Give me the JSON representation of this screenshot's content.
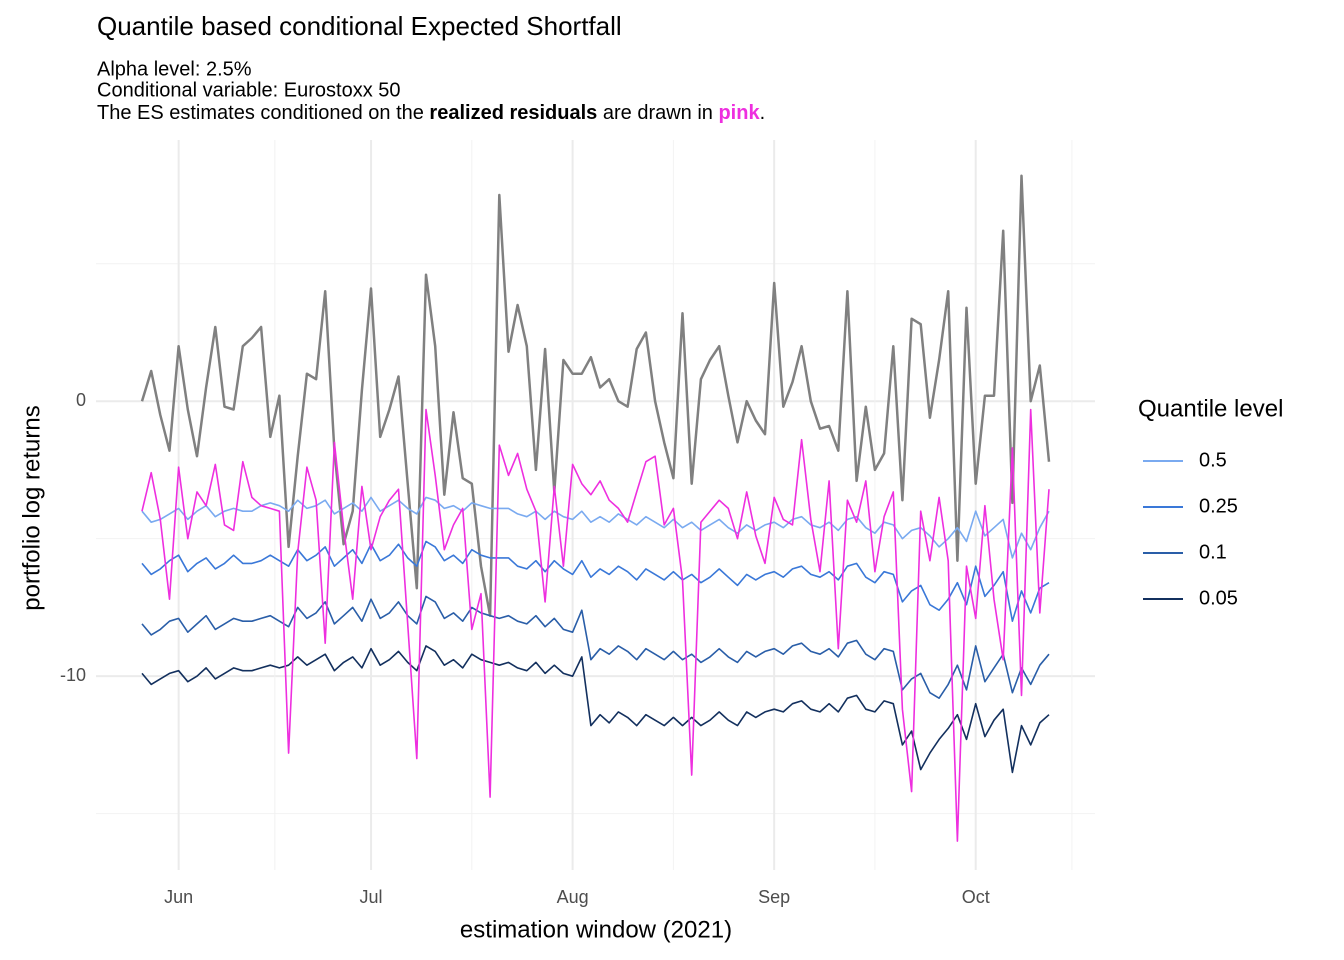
{
  "chart_data": {
    "type": "line",
    "title": "Quantile based conditional Expected Shortfall",
    "subtitle": [
      "Alpha level: 2.5%",
      "Conditional variable: Eurostoxx 50"
    ],
    "note": [
      {
        "text": "The ES estimates conditioned on the "
      },
      {
        "text": "realized residuals",
        "bold": true
      },
      {
        "text": " are drawn in "
      },
      {
        "text": "pink",
        "bold": true,
        "color": "#ee2fdf"
      },
      {
        "text": "."
      }
    ],
    "x_label": "estimation window (2021)",
    "y_label": "portfolio log returns",
    "legend_title": "Quantile level",
    "legend_position": "right",
    "grid": true,
    "ylim": [
      -17.05,
      9.5
    ],
    "yticks": [
      -10,
      0
    ],
    "minor_yticks": [
      -15,
      -5,
      5
    ],
    "categories": [
      null,
      null,
      null,
      null,
      "Jun",
      null,
      null,
      null,
      null,
      null,
      null,
      null,
      null,
      null,
      null,
      null,
      null,
      null,
      null,
      null,
      null,
      null,
      null,
      null,
      null,
      "Jul",
      null,
      null,
      null,
      null,
      null,
      null,
      null,
      null,
      null,
      null,
      null,
      null,
      null,
      null,
      null,
      null,
      null,
      null,
      null,
      null,
      null,
      "Aug",
      null,
      null,
      null,
      null,
      null,
      null,
      null,
      null,
      null,
      null,
      null,
      null,
      null,
      null,
      null,
      null,
      null,
      null,
      null,
      null,
      null,
      "Sep",
      null,
      null,
      null,
      null,
      null,
      null,
      null,
      null,
      null,
      null,
      null,
      null,
      null,
      null,
      null,
      null,
      null,
      null,
      null,
      null,
      null,
      "Oct",
      null,
      null,
      null,
      null,
      null,
      null,
      null,
      null
    ],
    "returns": {
      "color": "#808080",
      "values": [
        0,
        1.1,
        -0.5,
        -1.8,
        2.0,
        -0.3,
        -2.0,
        0.5,
        2.7,
        -0.2,
        -0.3,
        2.0,
        2.3,
        2.7,
        -1.3,
        0.2,
        -5.3,
        -2.0,
        1.0,
        0.8,
        4.0,
        -1.8,
        -5.2,
        -4.0,
        0.4,
        4.1,
        -1.3,
        -0.3,
        0.9,
        -3.0,
        -6.8,
        4.6,
        2.0,
        -3.4,
        -0.4,
        -2.8,
        -3.0,
        -6.0,
        -7.8,
        7.5,
        1.8,
        3.5,
        2.0,
        -2.5,
        1.9,
        -3.3,
        1.5,
        1.0,
        1.0,
        1.6,
        0.5,
        0.8,
        0.0,
        -0.2,
        1.9,
        2.5,
        0.0,
        -1.5,
        -2.8,
        3.2,
        -3.0,
        0.8,
        1.5,
        2.0,
        0.2,
        -1.5,
        0.0,
        -0.7,
        -1.2,
        4.3,
        -0.2,
        0.7,
        2.0,
        0.0,
        -1.0,
        -0.9,
        -1.8,
        4.0,
        -2.9,
        -0.2,
        -2.5,
        -1.9,
        2.0,
        -3.6,
        3.0,
        2.8,
        -0.6,
        1.5,
        4.0,
        -5.8,
        3.4,
        -3.0,
        0.2,
        0.2,
        6.2,
        -3.7,
        8.2,
        0.0,
        1.3,
        -2.2
      ]
    },
    "series": [
      {
        "name": "0.5",
        "color": "#7aaaf0",
        "values": [
          -4.0,
          -4.4,
          -4.3,
          -4.1,
          -3.9,
          -4.3,
          -4.0,
          -3.8,
          -4.2,
          -4.0,
          -3.9,
          -4.0,
          -4.0,
          -3.8,
          -3.7,
          -3.8,
          -4.0,
          -3.6,
          -3.9,
          -3.8,
          -3.6,
          -4.1,
          -3.9,
          -3.7,
          -4.0,
          -3.5,
          -4.0,
          -3.8,
          -3.6,
          -3.9,
          -4.1,
          -3.5,
          -3.6,
          -3.9,
          -3.8,
          -4.0,
          -3.7,
          -3.8,
          -3.9,
          -3.9,
          -3.9,
          -4.1,
          -4.2,
          -4.0,
          -4.3,
          -4.0,
          -4.2,
          -4.3,
          -4.0,
          -4.4,
          -4.2,
          -4.4,
          -4.1,
          -4.3,
          -4.5,
          -4.2,
          -4.4,
          -4.6,
          -4.3,
          -4.6,
          -4.4,
          -4.7,
          -4.5,
          -4.3,
          -4.6,
          -4.8,
          -4.5,
          -4.7,
          -4.5,
          -4.4,
          -4.6,
          -4.3,
          -4.2,
          -4.5,
          -4.6,
          -4.4,
          -4.7,
          -4.3,
          -4.2,
          -4.6,
          -4.8,
          -4.4,
          -4.5,
          -5.0,
          -4.7,
          -4.6,
          -4.9,
          -5.3,
          -5.0,
          -4.6,
          -5.1,
          -4.0,
          -4.9,
          -4.6,
          -4.3,
          -5.7,
          -4.8,
          -5.4,
          -4.6,
          -4.0
        ]
      },
      {
        "name": "0.25",
        "color": "#3a78d8",
        "values": [
          -5.9,
          -6.3,
          -6.1,
          -5.8,
          -5.6,
          -6.2,
          -5.9,
          -5.7,
          -6.1,
          -5.9,
          -5.6,
          -5.9,
          -5.9,
          -5.8,
          -5.6,
          -5.8,
          -6.0,
          -5.4,
          -5.8,
          -5.6,
          -5.3,
          -6.0,
          -5.7,
          -5.4,
          -5.9,
          -5.2,
          -5.8,
          -5.6,
          -5.2,
          -5.7,
          -6.0,
          -5.1,
          -5.3,
          -5.8,
          -5.6,
          -5.9,
          -5.4,
          -5.6,
          -5.7,
          -5.7,
          -5.7,
          -6.0,
          -6.1,
          -5.8,
          -6.2,
          -5.8,
          -6.1,
          -6.3,
          -5.8,
          -6.4,
          -6.1,
          -6.3,
          -6.0,
          -6.2,
          -6.5,
          -6.1,
          -6.3,
          -6.5,
          -6.2,
          -6.5,
          -6.3,
          -6.6,
          -6.4,
          -6.1,
          -6.4,
          -6.7,
          -6.3,
          -6.5,
          -6.3,
          -6.2,
          -6.4,
          -6.1,
          -6.0,
          -6.3,
          -6.4,
          -6.2,
          -6.5,
          -6.0,
          -5.9,
          -6.4,
          -6.6,
          -6.2,
          -6.3,
          -7.3,
          -6.9,
          -6.7,
          -7.4,
          -7.6,
          -7.2,
          -6.6,
          -7.4,
          -6.0,
          -7.1,
          -6.7,
          -6.2,
          -8.0,
          -6.9,
          -7.7,
          -6.8,
          -6.6
        ]
      },
      {
        "name": "0.1",
        "color": "#2a5ea8",
        "values": [
          -8.1,
          -8.5,
          -8.3,
          -8.0,
          -7.9,
          -8.4,
          -8.1,
          -7.8,
          -8.3,
          -8.1,
          -7.9,
          -8.0,
          -8.0,
          -7.9,
          -7.8,
          -8.0,
          -8.2,
          -7.5,
          -7.9,
          -7.7,
          -7.3,
          -8.1,
          -7.8,
          -7.5,
          -8.0,
          -7.2,
          -7.9,
          -7.7,
          -7.3,
          -7.8,
          -8.1,
          -7.1,
          -7.3,
          -7.9,
          -7.7,
          -8.0,
          -7.5,
          -7.7,
          -7.8,
          -7.9,
          -7.8,
          -8.0,
          -8.1,
          -7.8,
          -8.2,
          -7.9,
          -8.3,
          -8.4,
          -7.6,
          -9.4,
          -9.0,
          -9.2,
          -8.9,
          -9.1,
          -9.4,
          -9.0,
          -9.2,
          -9.4,
          -9.1,
          -9.4,
          -9.2,
          -9.5,
          -9.3,
          -9.0,
          -9.3,
          -9.5,
          -9.1,
          -9.3,
          -9.1,
          -9.0,
          -9.2,
          -8.9,
          -8.8,
          -9.1,
          -9.2,
          -9.0,
          -9.3,
          -8.8,
          -8.7,
          -9.2,
          -9.4,
          -9.0,
          -9.1,
          -10.5,
          -10.1,
          -9.9,
          -10.6,
          -10.8,
          -10.3,
          -9.6,
          -10.5,
          -8.9,
          -10.2,
          -9.7,
          -9.2,
          -10.6,
          -9.7,
          -10.3,
          -9.6,
          -9.2
        ]
      },
      {
        "name": "0.05",
        "color": "#13305e",
        "values": [
          -9.9,
          -10.3,
          -10.1,
          -9.9,
          -9.8,
          -10.2,
          -10.0,
          -9.7,
          -10.1,
          -9.9,
          -9.7,
          -9.8,
          -9.8,
          -9.7,
          -9.6,
          -9.7,
          -9.6,
          -9.3,
          -9.6,
          -9.4,
          -9.2,
          -9.8,
          -9.5,
          -9.3,
          -9.7,
          -9.0,
          -9.6,
          -9.4,
          -9.1,
          -9.5,
          -9.8,
          -8.9,
          -9.1,
          -9.6,
          -9.4,
          -9.7,
          -9.2,
          -9.4,
          -9.5,
          -9.6,
          -9.5,
          -9.7,
          -9.8,
          -9.5,
          -9.9,
          -9.6,
          -9.9,
          -10.0,
          -9.3,
          -11.8,
          -11.4,
          -11.7,
          -11.3,
          -11.5,
          -11.8,
          -11.4,
          -11.6,
          -11.8,
          -11.5,
          -11.8,
          -11.5,
          -11.8,
          -11.6,
          -11.3,
          -11.6,
          -11.8,
          -11.3,
          -11.5,
          -11.3,
          -11.2,
          -11.3,
          -11.0,
          -10.9,
          -11.2,
          -11.3,
          -11.0,
          -11.3,
          -10.8,
          -10.7,
          -11.2,
          -11.3,
          -10.9,
          -11.0,
          -12.5,
          -12.0,
          -13.4,
          -12.8,
          -12.3,
          -11.9,
          -11.4,
          -12.3,
          -11.0,
          -12.2,
          -11.6,
          -11.2,
          -13.5,
          -11.8,
          -12.5,
          -11.7,
          -11.4
        ]
      }
    ],
    "realized_es": {
      "color": "#ee2fdf",
      "values": [
        -4.0,
        -2.6,
        -4.3,
        -7.2,
        -2.4,
        -5.0,
        -3.3,
        -3.8,
        -2.3,
        -4.5,
        -4.7,
        -2.2,
        -3.5,
        -3.8,
        -3.9,
        -4.0,
        -12.8,
        -5.5,
        -2.4,
        -3.6,
        -8.8,
        -1.5,
        -4.6,
        -7.2,
        -3.1,
        -5.4,
        -4.2,
        -3.6,
        -3.2,
        -8.1,
        -13.0,
        -0.3,
        -2.7,
        -5.4,
        -4.5,
        -3.9,
        -8.3,
        -7.0,
        -14.4,
        -1.6,
        -2.7,
        -1.9,
        -3.2,
        -4.0,
        -7.3,
        -3.1,
        -6.0,
        -2.3,
        -3.0,
        -3.4,
        -2.9,
        -3.6,
        -3.9,
        -4.4,
        -3.3,
        -2.2,
        -2.0,
        -4.5,
        -3.9,
        -6.5,
        -13.6,
        -4.4,
        -4.0,
        -3.6,
        -3.9,
        -5.0,
        -3.3,
        -4.9,
        -5.9,
        -3.5,
        -4.3,
        -4.5,
        -1.4,
        -4.3,
        -6.2,
        -2.9,
        -9.0,
        -3.6,
        -4.4,
        -2.9,
        -6.2,
        -4.2,
        -3.3,
        -11.2,
        -14.2,
        -4.0,
        -5.8,
        -3.5,
        -5.8,
        -16.0,
        -6.0,
        -7.9,
        -3.8,
        -7.2,
        -9.4,
        -1.7,
        -10.7,
        -0.3,
        -7.7,
        -3.2
      ]
    }
  }
}
